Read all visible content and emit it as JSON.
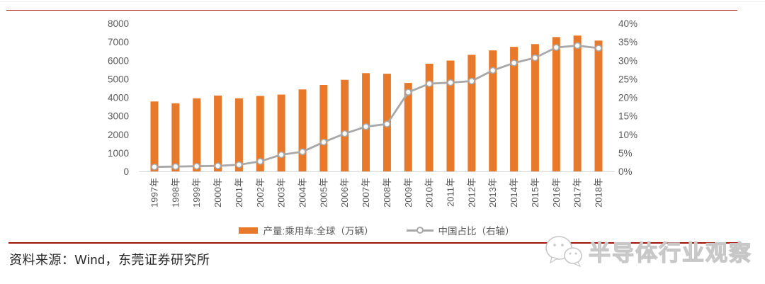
{
  "chart_data": {
    "type": "bar+line",
    "categories": [
      "1997年",
      "1998年",
      "1999年",
      "2000年",
      "2001年",
      "2002年",
      "2003年",
      "2004年",
      "2005年",
      "2006年",
      "2007年",
      "2008年",
      "2009年",
      "2010年",
      "2011年",
      "2012年",
      "2013年",
      "2014年",
      "2015年",
      "2016年",
      "2017年",
      "2018年"
    ],
    "series": [
      {
        "name": "产量:乘用车:全球（万辆）",
        "type": "bar",
        "axis": "left",
        "color": "#E8792B",
        "values": [
          3780,
          3680,
          3950,
          4100,
          3950,
          4080,
          4150,
          4430,
          4670,
          4950,
          5310,
          5280,
          4780,
          5820,
          5990,
          6300,
          6540,
          6730,
          6880,
          7260,
          7340,
          7070
        ]
      },
      {
        "name": "中国占比（右轴）",
        "type": "line",
        "axis": "right",
        "color": "#A8A8A8",
        "marker": "open-circle",
        "values": [
          1.2,
          1.3,
          1.4,
          1.5,
          1.8,
          2.7,
          4.5,
          5.3,
          7.9,
          10.2,
          12.1,
          12.8,
          21.4,
          23.7,
          24.0,
          24.4,
          27.3,
          29.3,
          30.7,
          33.5,
          34.0,
          33.3
        ]
      }
    ],
    "left_axis": {
      "min": 0,
      "max": 8000,
      "step": 1000,
      "tick_labels": [
        "0",
        "1000",
        "2000",
        "3000",
        "4000",
        "5000",
        "6000",
        "7000",
        "8000"
      ],
      "label_color": "#595959"
    },
    "right_axis": {
      "min": 0,
      "max": 40,
      "step": 5,
      "tick_labels": [
        "0%",
        "5%",
        "10%",
        "15%",
        "20%",
        "25%",
        "30%",
        "35%",
        "40%"
      ],
      "label_color": "#595959"
    },
    "grid": false,
    "axis_line_color": "#D9D9D9",
    "legend_position": "bottom-center"
  },
  "rules": {
    "top_color": "#AF2B1E",
    "bottom_color": "#9E1406"
  },
  "footer": {
    "source_text": "资料来源：Wind，东莞证券研究所"
  },
  "watermark": {
    "text": "半导体行业观察",
    "icon": "wechat-chat-bubbles-icon",
    "color": "#c7c7c7"
  }
}
